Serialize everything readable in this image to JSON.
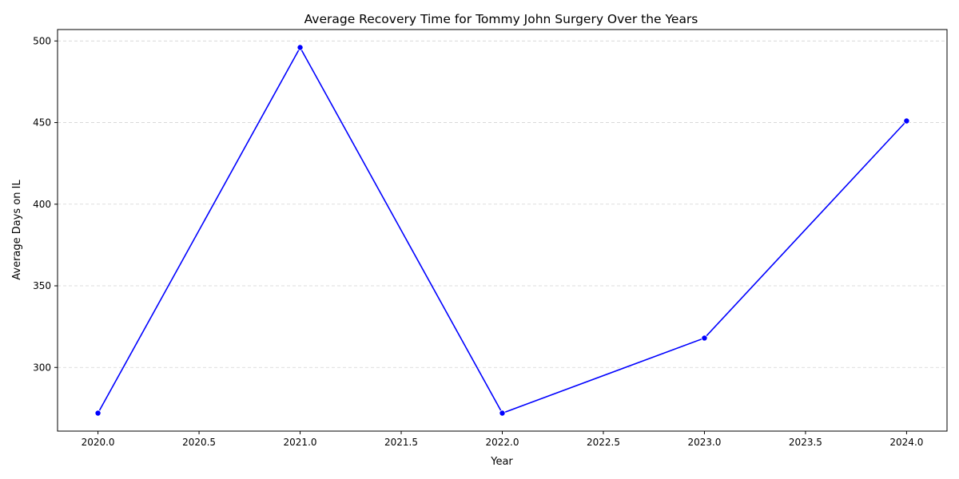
{
  "chart_data": {
    "type": "line",
    "title": "Average Recovery Time for Tommy John Surgery Over the Years",
    "xlabel": "Year",
    "ylabel": "Average Days on IL",
    "x": [
      2020,
      2021,
      2022,
      2023,
      2024
    ],
    "series": [
      {
        "values": [
          272,
          496,
          272,
          318,
          451
        ]
      }
    ],
    "xlim": [
      2019.8,
      2024.2
    ],
    "ylim": [
      261,
      507
    ],
    "xticks": [
      2020.0,
      2020.5,
      2021.0,
      2021.5,
      2022.0,
      2022.5,
      2023.0,
      2023.5,
      2024.0
    ],
    "xtick_labels": [
      "2020.0",
      "2020.5",
      "2021.0",
      "2021.5",
      "2022.0",
      "2022.5",
      "2023.0",
      "2023.5",
      "2024.0"
    ],
    "yticks": [
      300,
      350,
      400,
      450,
      500
    ],
    "ytick_labels": [
      "300",
      "350",
      "400",
      "450",
      "500"
    ],
    "grid": "y-dashed",
    "line_color": "#0000ff",
    "grid_color": "#d3d3d3"
  }
}
